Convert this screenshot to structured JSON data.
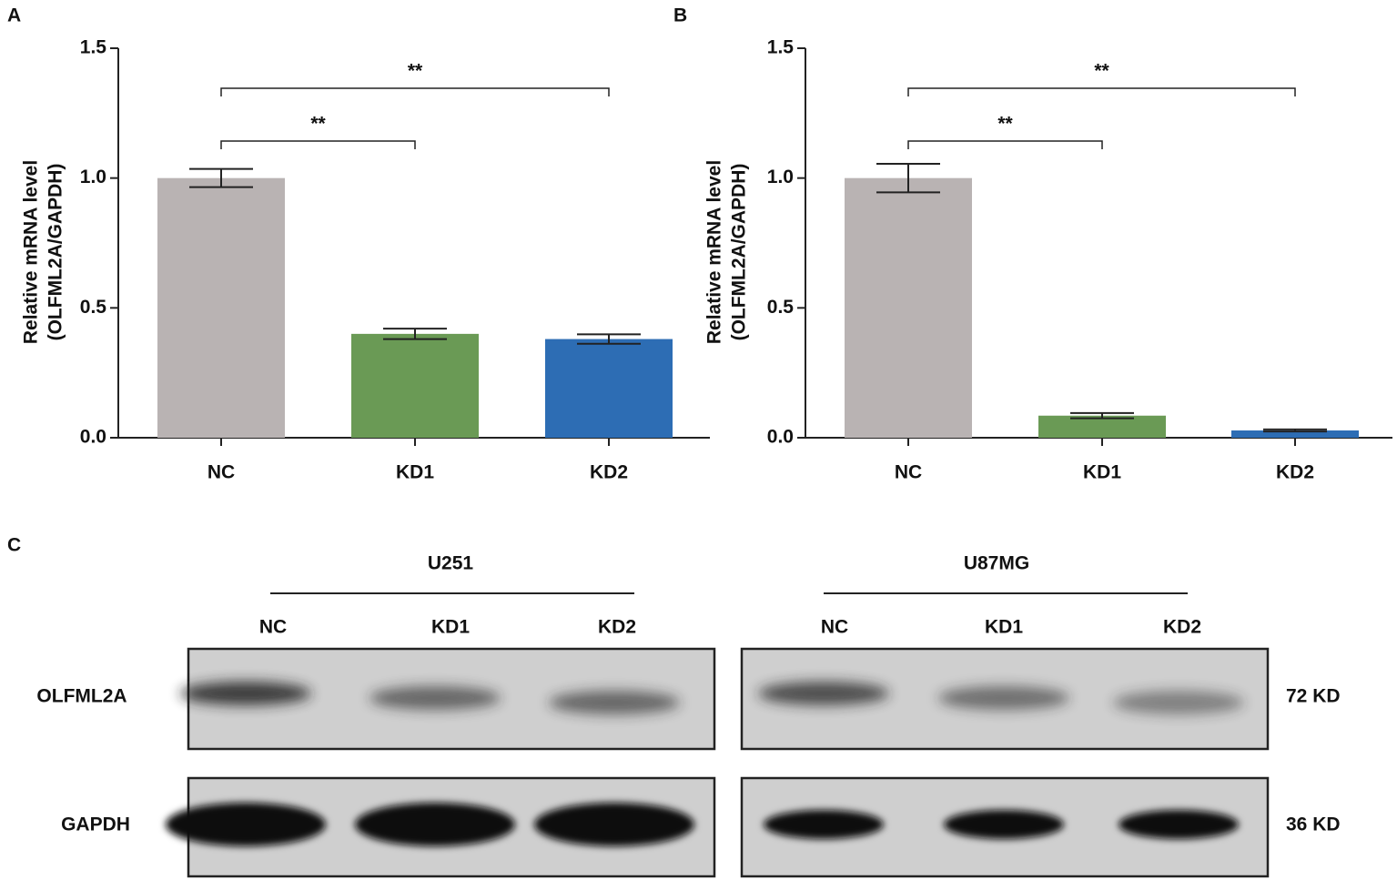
{
  "chart_data": [
    {
      "type": "bar",
      "panel": "A",
      "ylabel": [
        "Relative mRNA level",
        "(OLFML2A/GAPDH)"
      ],
      "categories": [
        "NC",
        "KD1",
        "KD2"
      ],
      "values": [
        1.0,
        0.4,
        0.38
      ],
      "errors": [
        0.035,
        0.02,
        0.018
      ],
      "colors": [
        "#b9b3b3",
        "#6a9a55",
        "#2d6db4"
      ],
      "ylim": [
        0,
        1.5
      ],
      "yticks": [
        {
          "value": 0,
          "label": "0.0"
        },
        {
          "value": 0.5,
          "label": "0.5"
        },
        {
          "value": 1,
          "label": "1.0"
        },
        {
          "value": 1.5,
          "label": "1.5"
        }
      ],
      "annotations": [
        {
          "between": [
            "NC",
            "KD1"
          ],
          "text": "**"
        },
        {
          "between": [
            "NC",
            "KD2"
          ],
          "text": "**"
        }
      ]
    },
    {
      "type": "bar",
      "panel": "B",
      "ylabel": [
        "Relative mRNA level",
        "(OLFML2A/GAPDH)"
      ],
      "categories": [
        "NC",
        "KD1",
        "KD2"
      ],
      "values": [
        1.0,
        0.085,
        0.028
      ],
      "errors": [
        0.055,
        0.01,
        0.004
      ],
      "colors": [
        "#b9b3b3",
        "#6a9a55",
        "#2d6db4"
      ],
      "ylim": [
        0,
        1.5
      ],
      "yticks": [
        {
          "value": 0,
          "label": "0.0"
        },
        {
          "value": 0.5,
          "label": "0.5"
        },
        {
          "value": 1,
          "label": "1.0"
        },
        {
          "value": 1.5,
          "label": "1.5"
        }
      ],
      "annotations": [
        {
          "between": [
            "NC",
            "KD1"
          ],
          "text": "**"
        },
        {
          "between": [
            "NC",
            "KD2"
          ],
          "text": "**"
        }
      ]
    }
  ],
  "blot": {
    "panel": "C",
    "groups": [
      {
        "name": "U251",
        "lanes": [
          "NC",
          "KD1",
          "KD2"
        ]
      },
      {
        "name": "U87MG",
        "lanes": [
          "NC",
          "KD1",
          "KD2"
        ]
      }
    ],
    "rows": [
      {
        "protein": "OLFML2A",
        "size": "72 KD"
      },
      {
        "protein": "GAPDH",
        "size": "36 KD"
      }
    ]
  }
}
